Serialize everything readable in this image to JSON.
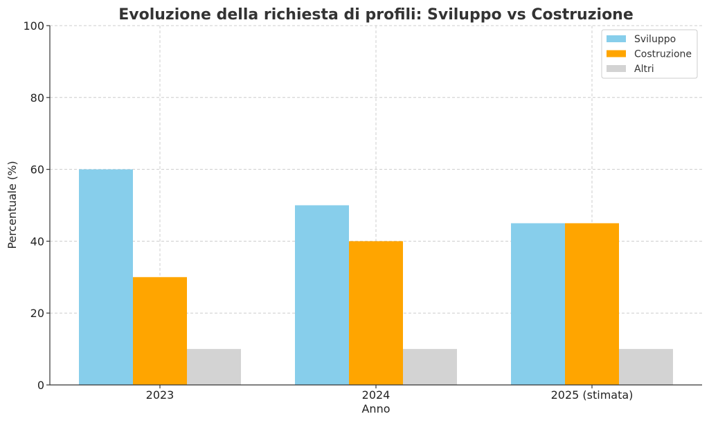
{
  "chart_data": {
    "type": "bar",
    "title": "Evoluzione della richiesta di profili: Sviluppo vs Costruzione",
    "xlabel": "Anno",
    "ylabel": "Percentuale (%)",
    "categories": [
      "2023",
      "2024",
      "2025 (stimata)"
    ],
    "series": [
      {
        "name": "Sviluppo",
        "color": "#87ceeb",
        "values": [
          60,
          50,
          45
        ]
      },
      {
        "name": "Costruzione",
        "color": "#ffa500",
        "values": [
          30,
          40,
          45
        ]
      },
      {
        "name": "Altri",
        "color": "#d3d3d3",
        "values": [
          10,
          10,
          10
        ]
      }
    ],
    "ylim": [
      0,
      100
    ],
    "yticks": [
      0,
      20,
      40,
      60,
      80,
      100
    ],
    "grid": true,
    "legend_position": "top-right"
  }
}
